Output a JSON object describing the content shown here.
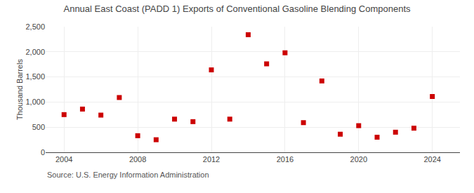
{
  "chart_data": {
    "type": "scatter",
    "title": "Annual East Coast (PADD 1) Exports of Conventional Gasoline Blending Components",
    "ylabel": "Thousand Barrels",
    "annotations": [
      "Source: U.S. Energy Information Administration"
    ],
    "x": [
      2004,
      2005,
      2006,
      2007,
      2008,
      2009,
      2010,
      2011,
      2012,
      2013,
      2014,
      2015,
      2016,
      2017,
      2018,
      2019,
      2020,
      2021,
      2022,
      2023,
      2024
    ],
    "values": [
      750,
      860,
      740,
      1090,
      330,
      250,
      660,
      610,
      1640,
      660,
      2340,
      1760,
      1980,
      590,
      1420,
      360,
      530,
      300,
      400,
      480,
      1110
    ],
    "color": "#cc0000",
    "marker": "square",
    "xlim": [
      2003.0,
      2025.5
    ],
    "xticks": [
      2004,
      2008,
      2012,
      2016,
      2020,
      2024
    ],
    "ylim": [
      0,
      2500
    ],
    "yticks": [
      0,
      500,
      {
        "value": 1000,
        "label": "1,000"
      },
      {
        "value": 1500,
        "label": "1,500"
      },
      {
        "value": 2000,
        "label": "2,000"
      },
      {
        "value": 2500,
        "label": "2,500"
      }
    ],
    "grid": true
  }
}
